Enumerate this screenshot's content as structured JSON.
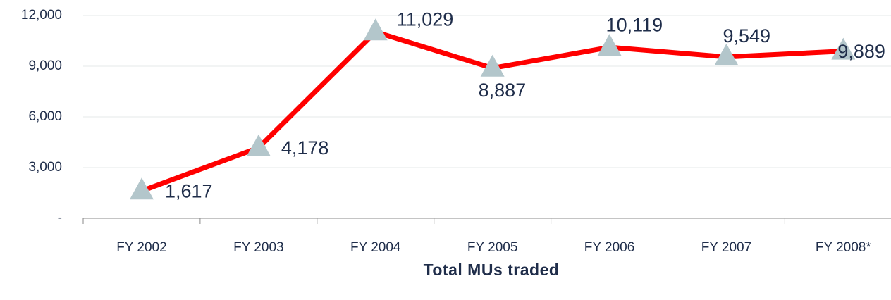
{
  "chart_data": {
    "type": "line",
    "x_label": "Total MUs traded",
    "categories": [
      "FY 2002",
      "FY 2003",
      "FY 2004",
      "FY 2005",
      "FY 2006",
      "FY 2007",
      "FY 2008*"
    ],
    "values": [
      1617,
      4178,
      11029,
      8887,
      10119,
      9549,
      9889
    ],
    "value_labels": [
      "1,617",
      "4,178",
      "11,029",
      "8,887",
      "10,119",
      "9,549",
      "9,889"
    ],
    "color": "#ff0000",
    "marker_color": "#b3c6cb",
    "ylim": [
      0,
      12000
    ],
    "yticks": [
      {
        "value": 0,
        "label": "-"
      },
      {
        "value": 3000,
        "label": "3,000"
      },
      {
        "value": 6000,
        "label": "6,000"
      },
      {
        "value": 9000,
        "label": "9,000"
      },
      {
        "value": 12000,
        "label": "12,000"
      }
    ],
    "grid": true
  }
}
